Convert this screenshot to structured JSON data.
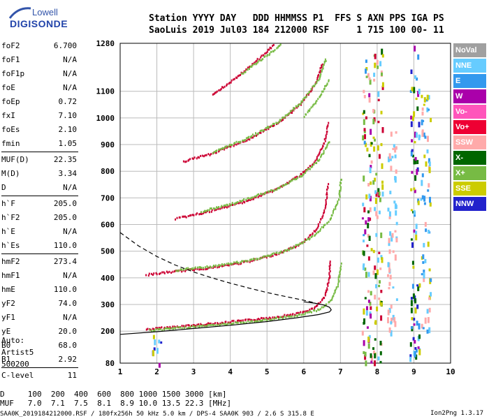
{
  "logo": {
    "line1": "Lowell",
    "line2": "DIGISONDE"
  },
  "header": {
    "line1": "Station YYYY DAY   DDD HHMMSS P1  FFS S AXN PPS IGA PS",
    "line2": "SaoLuis 2019 Jul03 184 212000 RSF     1 715 100 00- 11"
  },
  "params": [
    {
      "k": "foF2",
      "v": "6.700"
    },
    {
      "k": "foF1",
      "v": "N/A"
    },
    {
      "k": "foF1p",
      "v": "N/A"
    },
    {
      "k": "foE",
      "v": "N/A"
    },
    {
      "k": "foEp",
      "v": "0.72"
    },
    {
      "k": "fxI",
      "v": "7.10"
    },
    {
      "k": "foEs",
      "v": "2.10"
    },
    {
      "k": "fmin",
      "v": "1.05"
    },
    {
      "k": "MUF(D)",
      "v": "22.35"
    },
    {
      "k": "M(D)",
      "v": "3.34"
    },
    {
      "k": "D",
      "v": "N/A"
    },
    {
      "k": "h`F",
      "v": "205.0"
    },
    {
      "k": "h`F2",
      "v": "205.0"
    },
    {
      "k": "h`E",
      "v": "N/A"
    },
    {
      "k": "h`Es",
      "v": "110.0"
    },
    {
      "k": "hmF2",
      "v": "273.4"
    },
    {
      "k": "hmF1",
      "v": "N/A"
    },
    {
      "k": "hmE",
      "v": "110.0"
    },
    {
      "k": "yF2",
      "v": "74.0"
    },
    {
      "k": "yF1",
      "v": "N/A"
    },
    {
      "k": "yE",
      "v": "20.0"
    },
    {
      "k": "B0",
      "v": "68.0"
    },
    {
      "k": "B1",
      "v": "2.92"
    },
    {
      "k": "C-level",
      "v": "11"
    }
  ],
  "extra": {
    "l1": "Auto:",
    "l2": "Artist5",
    "l3": "500200"
  },
  "footer": {
    "d_row": "D     100  200  400  600  800 1000 1500 3000 [km]",
    "muf_row": "MUF   7.0  7.1  7.5  8.1  8.9 10.0 13.5 22.3 [MHz]",
    "file_row": "SAA0K_2019184212000.RSF / 180fx256h 50 kHz 5.0 km / DPS-4 SAA0K 903 / 2.6 S 315.8 E",
    "credit": "Ion2Png 1.3.17"
  },
  "legend": [
    {
      "label": "NoVal",
      "color": "#a0a0a0"
    },
    {
      "label": "NNE",
      "color": "#66ccff"
    },
    {
      "label": "E",
      "color": "#3399ee"
    },
    {
      "label": "W",
      "color": "#aa00aa"
    },
    {
      "label": "Vo-",
      "color": "#ff55bb"
    },
    {
      "label": "Vo+",
      "color": "#ee0033"
    },
    {
      "label": "SSW",
      "color": "#ffaaaa"
    },
    {
      "label": "X-",
      "color": "#006600"
    },
    {
      "label": "X+",
      "color": "#77bb44"
    },
    {
      "label": "SSE",
      "color": "#cccc00"
    },
    {
      "label": "NNW",
      "color": "#2222cc"
    }
  ],
  "chart_data": {
    "type": "scatter",
    "xlabel": "",
    "ylabel": "",
    "xlim": [
      1,
      10
    ],
    "ylim": [
      80,
      1280
    ],
    "x_ticks": [
      1,
      2,
      3,
      4,
      5,
      6,
      7,
      8,
      9,
      10
    ],
    "y_ticks": [
      80,
      200,
      300,
      400,
      500,
      600,
      700,
      800,
      900,
      1000,
      1100,
      1280
    ],
    "grid": true,
    "series": [
      {
        "kind": "trace",
        "color": "#cc0033",
        "points": [
          [
            1.7,
            210
          ],
          [
            2.5,
            220
          ],
          [
            3.5,
            232
          ],
          [
            4.5,
            245
          ],
          [
            5.3,
            258
          ],
          [
            5.9,
            272
          ],
          [
            6.3,
            292
          ],
          [
            6.55,
            330
          ],
          [
            6.68,
            400
          ],
          [
            6.7,
            470
          ]
        ]
      },
      {
        "kind": "trace",
        "color": "#77bb44",
        "points": [
          [
            1.8,
            207
          ],
          [
            3,
            220
          ],
          [
            4,
            232
          ],
          [
            5,
            246
          ],
          [
            5.8,
            262
          ],
          [
            6.4,
            285
          ],
          [
            6.75,
            320
          ],
          [
            6.92,
            380
          ],
          [
            7.0,
            460
          ]
        ]
      },
      {
        "kind": "trace",
        "color": "#cc0033",
        "points": [
          [
            1.7,
            415
          ],
          [
            2.5,
            428
          ],
          [
            3.5,
            442
          ],
          [
            4.5,
            465
          ],
          [
            5.3,
            495
          ],
          [
            5.9,
            530
          ],
          [
            6.3,
            580
          ],
          [
            6.55,
            650
          ],
          [
            6.65,
            760
          ]
        ]
      },
      {
        "kind": "trace",
        "color": "#77bb44",
        "points": [
          [
            2.5,
            432
          ],
          [
            3.5,
            447
          ],
          [
            4.5,
            468
          ],
          [
            5.5,
            505
          ],
          [
            6.2,
            555
          ],
          [
            6.7,
            620
          ],
          [
            6.95,
            700
          ],
          [
            7.0,
            780
          ]
        ]
      },
      {
        "kind": "trace",
        "color": "#cc0033",
        "points": [
          [
            2.5,
            625
          ],
          [
            3.5,
            655
          ],
          [
            4.5,
            695
          ],
          [
            5.3,
            740
          ],
          [
            5.9,
            790
          ],
          [
            6.3,
            840
          ],
          [
            6.55,
            910
          ],
          [
            6.65,
            990
          ]
        ]
      },
      {
        "kind": "trace",
        "color": "#77bb44",
        "points": [
          [
            3.2,
            652
          ],
          [
            4.2,
            688
          ],
          [
            5.2,
            735
          ],
          [
            5.9,
            785
          ],
          [
            6.4,
            845
          ],
          [
            6.7,
            920
          ]
        ]
      },
      {
        "kind": "trace",
        "color": "#cc0033",
        "points": [
          [
            2.7,
            840
          ],
          [
            3.5,
            870
          ],
          [
            4.5,
            925
          ],
          [
            5.3,
            985
          ],
          [
            5.9,
            1055
          ],
          [
            6.3,
            1130
          ],
          [
            6.5,
            1210
          ]
        ]
      },
      {
        "kind": "trace",
        "color": "#77bb44",
        "points": [
          [
            3.5,
            875
          ],
          [
            4.5,
            930
          ],
          [
            5.3,
            990
          ],
          [
            5.9,
            1060
          ],
          [
            6.4,
            1150
          ],
          [
            6.6,
            1230
          ]
        ]
      },
      {
        "kind": "trace",
        "color": "#cc0033",
        "points": [
          [
            3.5,
            1090
          ],
          [
            4.2,
            1160
          ],
          [
            4.8,
            1230
          ],
          [
            5.2,
            1280
          ]
        ]
      },
      {
        "kind": "trace",
        "color": "#77bb44",
        "points": [
          [
            4.3,
            1170
          ],
          [
            5.0,
            1240
          ],
          [
            5.4,
            1280
          ]
        ]
      },
      {
        "kind": "trace",
        "color": "#77bb44",
        "points": [
          [
            6.0,
            1010
          ],
          [
            6.4,
            1080
          ],
          [
            6.7,
            1150
          ]
        ]
      },
      {
        "kind": "model",
        "style": "solid",
        "points": [
          [
            1,
            188
          ],
          [
            2,
            198
          ],
          [
            3,
            210
          ],
          [
            4,
            222
          ],
          [
            5,
            236
          ],
          [
            5.8,
            250
          ],
          [
            6.4,
            262
          ],
          [
            6.7,
            272
          ],
          [
            6.75,
            280
          ],
          [
            6.7,
            290
          ],
          [
            6.55,
            298
          ],
          [
            6.3,
            305
          ],
          [
            6.0,
            310
          ]
        ]
      },
      {
        "kind": "model",
        "style": "dashed",
        "points": [
          [
            1,
            570
          ],
          [
            1.5,
            520
          ],
          [
            2,
            480
          ],
          [
            2.5,
            448
          ],
          [
            3,
            422
          ],
          [
            3.5,
            400
          ],
          [
            4,
            380
          ],
          [
            4.5,
            362
          ],
          [
            5,
            345
          ],
          [
            5.5,
            330
          ],
          [
            6,
            316
          ],
          [
            6.3,
            306
          ]
        ]
      }
    ],
    "blocks": [
      {
        "x": 7.7,
        "y1": 80,
        "y2": 1280,
        "colors": [
          "#66ccff",
          "#3399ee",
          "#ffaaaa",
          "#cc0033",
          "#77bb44",
          "#006600",
          "#aa00aa",
          "#cccc00"
        ]
      },
      {
        "x": 8.0,
        "y1": 80,
        "y2": 1280,
        "colors": [
          "#ffaaaa",
          "#cc0033",
          "#77bb44",
          "#66ccff",
          "#cccc00",
          "#006600"
        ]
      },
      {
        "x": 9.0,
        "y1": 80,
        "y2": 1280,
        "colors": [
          "#66ccff",
          "#3399ee",
          "#2222cc",
          "#aa00aa",
          "#006600",
          "#cccc00"
        ]
      },
      {
        "x": 9.3,
        "y1": 200,
        "y2": 1100,
        "colors": [
          "#66ccff",
          "#3399ee",
          "#cccc00",
          "#ffaaaa"
        ]
      },
      {
        "x": 8.4,
        "y1": 200,
        "y2": 1000,
        "colors": [
          "#ffaaaa",
          "#66ccff"
        ]
      },
      {
        "x": 2.0,
        "y1": 80,
        "y2": 200,
        "colors": [
          "#2222cc",
          "#aa00aa",
          "#cccc00",
          "#006600",
          "#66ccff"
        ]
      }
    ]
  }
}
